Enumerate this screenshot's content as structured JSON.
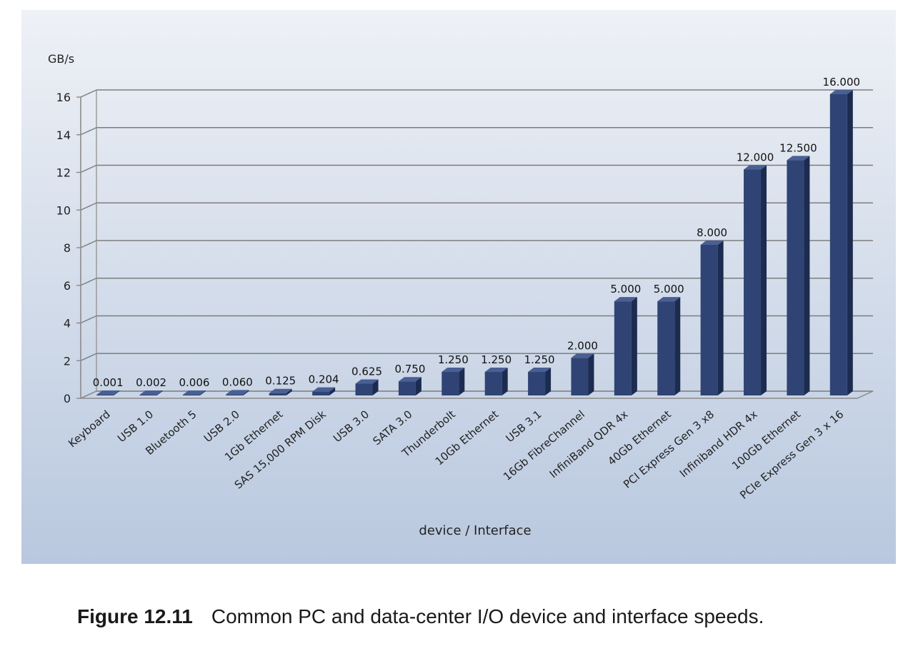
{
  "chart_data": {
    "type": "bar",
    "title": "",
    "ylabel": "GB/s",
    "xlabel": "device / Interface",
    "ylim": [
      0,
      16
    ],
    "yticks": [
      0,
      2,
      4,
      6,
      8,
      10,
      12,
      14,
      16
    ],
    "grid": true,
    "legend": "none",
    "style": "3d",
    "categories": [
      "Keyboard",
      "USB 1.0",
      "Bluetooth 5",
      "USB 2.0",
      "1Gb Ethernet",
      "SAS 15,000 RPM Disk",
      "USB 3.0",
      "SATA 3.0",
      "Thunderbolt",
      "10Gb Ethernet",
      "USB 3.1",
      "16Gb FibreChannel",
      "InfiniBand QDR 4x",
      "40Gb Ethernet",
      "PCI Express Gen 3 x8",
      "Infiniband HDR 4x",
      "100Gb Ethernet",
      "PCIe Express Gen 3 x 16"
    ],
    "values": [
      0.001,
      0.002,
      0.006,
      0.06,
      0.125,
      0.204,
      0.625,
      0.75,
      1.25,
      1.25,
      1.25,
      2.0,
      5.0,
      5.0,
      8.0,
      12.0,
      12.5,
      16.0
    ],
    "data_labels": [
      "0.001",
      "0.002",
      "0.006",
      "0.060",
      "0.125",
      "0.204",
      "0.625",
      "0.750",
      "1.250",
      "1.250",
      "1.250",
      "2.000",
      "5.000",
      "5.000",
      "8.000",
      "12.000",
      "12.500",
      "16.000"
    ],
    "colors": {
      "bar_front": "#2f4474",
      "bar_side": "#1c2b50",
      "bar_top": "#4a5f94",
      "plot_bg_top": "#eef1f6",
      "plot_bg_bottom": "#b9c8df",
      "gridline": "#7d7d7d",
      "frame": "#8a8a8a"
    }
  },
  "caption": {
    "label": "Figure 12.11",
    "text": "Common PC and data-center I/O device and interface speeds."
  }
}
